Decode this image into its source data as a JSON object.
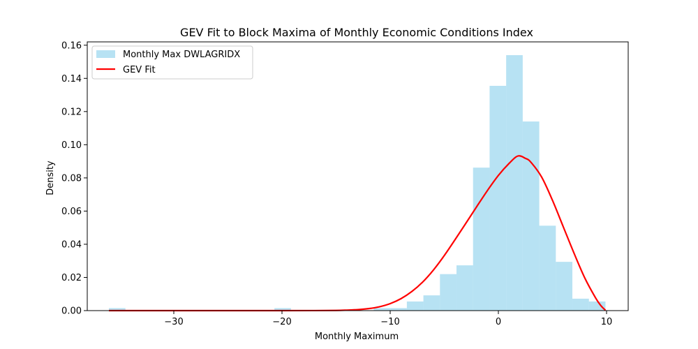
{
  "chart_data": {
    "type": "histogram+line",
    "title": "GEV Fit to Block Maxima of Monthly Economic Conditions Index",
    "xlabel": "Monthly Maximum",
    "ylabel": "Density",
    "xlim": [
      -38.0,
      12.0
    ],
    "ylim": [
      0,
      0.162
    ],
    "x_ticks": [
      -30,
      -20,
      -10,
      0,
      10
    ],
    "x_tick_labels": [
      "−30",
      "−20",
      "−10",
      "0",
      "10"
    ],
    "y_ticks": [
      0,
      0.02,
      0.04,
      0.06,
      0.08,
      0.1,
      0.12,
      0.14,
      0.16
    ],
    "y_tick_labels": [
      "0.00",
      "0.02",
      "0.04",
      "0.06",
      "0.08",
      "0.10",
      "0.12",
      "0.14",
      "0.16"
    ],
    "grid": false,
    "legend_position": "top-left",
    "histogram": {
      "name": "Monthly Max DWLAGRIDX",
      "color": "#87ceeb",
      "opacity": 0.6,
      "bins_start": -36.0,
      "bin_width": 1.53,
      "densities": [
        0.0015,
        0,
        0,
        0,
        0,
        0,
        0,
        0,
        0,
        0,
        0.0015,
        0,
        0,
        0,
        0,
        0,
        0.0015,
        0.0015,
        0.0055,
        0.0092,
        0.022,
        0.0273,
        0.0862,
        0.1355,
        0.154,
        0.114,
        0.0512,
        0.0294,
        0.0072,
        0.0055
      ]
    },
    "gev_fit": {
      "name": "GEV Fit",
      "color": "#ff0000",
      "x": [
        -36,
        -30,
        -25,
        -20,
        -17,
        -15,
        -14,
        -13,
        -12,
        -11,
        -10,
        -9,
        -8,
        -7,
        -6,
        -5,
        -4,
        -3,
        -2,
        -1,
        0,
        1,
        1.8,
        2.5,
        3,
        4,
        5,
        6,
        7,
        8,
        9,
        9.5,
        9.9
      ],
      "y": [
        0,
        0,
        0,
        0,
        2e-05,
        0.0001,
        0.0003,
        0.0006,
        0.0012,
        0.0023,
        0.0042,
        0.0072,
        0.0115,
        0.0172,
        0.0245,
        0.0332,
        0.0428,
        0.0527,
        0.0627,
        0.0725,
        0.0815,
        0.0888,
        0.0932,
        0.0918,
        0.0895,
        0.0805,
        0.0665,
        0.0505,
        0.0345,
        0.0195,
        0.0075,
        0.0028,
        0.0002
      ]
    }
  }
}
